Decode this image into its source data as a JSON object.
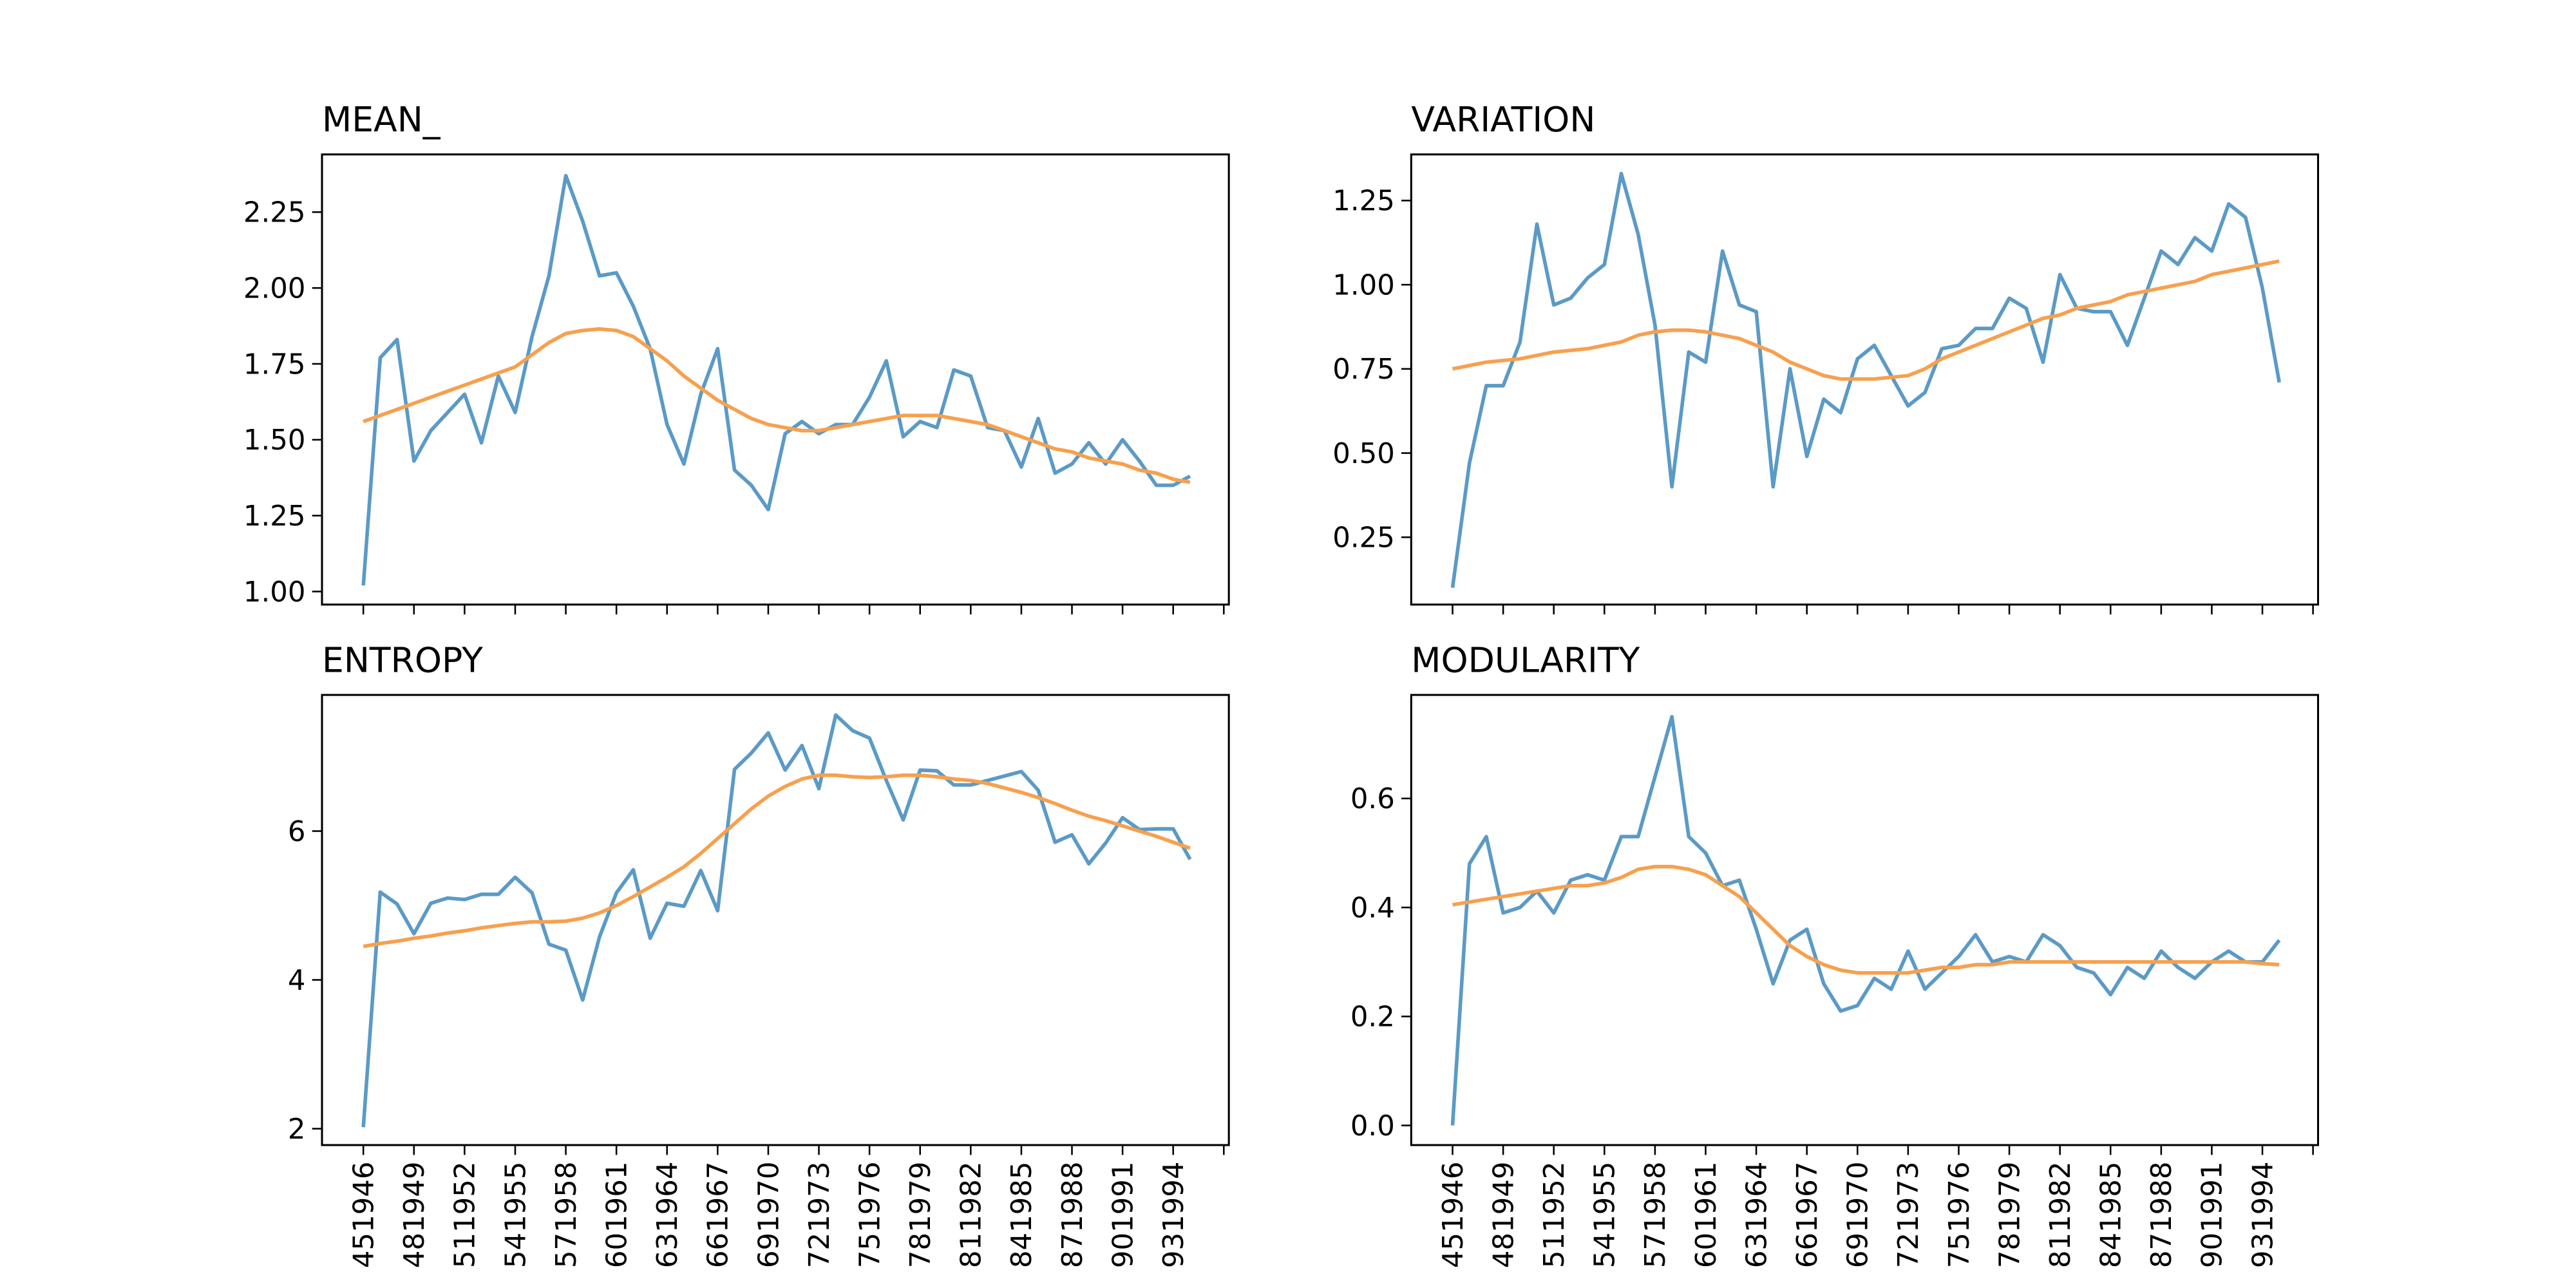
{
  "chart_data": [
    {
      "type": "line",
      "title": "MEAN_",
      "xlim": [
        -2.45,
        51.3
      ],
      "xticks": [
        0,
        3,
        6,
        9,
        12,
        15,
        18,
        21,
        24,
        27,
        30,
        33,
        36,
        39,
        42,
        45,
        48,
        51
      ],
      "ylim": [
        0.957,
        2.44
      ],
      "yticks": [
        {
          "value": 1.0,
          "label": "1.00"
        },
        {
          "value": 1.25,
          "label": "1.25"
        },
        {
          "value": 1.5,
          "label": "1.50"
        },
        {
          "value": 1.75,
          "label": "1.75"
        },
        {
          "value": 2.0,
          "label": "2.00"
        },
        {
          "value": 2.25,
          "label": "2.25"
        }
      ],
      "series": [
        {
          "color": "#5b9ac6",
          "values": [
            1.02,
            1.77,
            1.83,
            1.43,
            1.53,
            1.59,
            1.65,
            1.49,
            1.71,
            1.59,
            1.84,
            2.04,
            2.37,
            2.22,
            2.04,
            2.05,
            1.94,
            1.8,
            1.55,
            1.42,
            1.65,
            1.8,
            1.4,
            1.35,
            1.27,
            1.52,
            1.56,
            1.52,
            1.55,
            1.55,
            1.64,
            1.76,
            1.51,
            1.56,
            1.54,
            1.73,
            1.71,
            1.54,
            1.53,
            1.41,
            1.57,
            1.39,
            1.42,
            1.49,
            1.42,
            1.5,
            1.43,
            1.35,
            1.35,
            1.38
          ]
        },
        {
          "color": "#f7a04e",
          "values": [
            1.56,
            1.58,
            1.6,
            1.62,
            1.64,
            1.66,
            1.68,
            1.7,
            1.72,
            1.74,
            1.78,
            1.82,
            1.85,
            1.86,
            1.865,
            1.86,
            1.84,
            1.8,
            1.76,
            1.71,
            1.67,
            1.63,
            1.6,
            1.57,
            1.55,
            1.54,
            1.53,
            1.53,
            1.54,
            1.55,
            1.56,
            1.57,
            1.58,
            1.58,
            1.58,
            1.57,
            1.56,
            1.55,
            1.53,
            1.51,
            1.49,
            1.47,
            1.46,
            1.44,
            1.43,
            1.42,
            1.4,
            1.39,
            1.37,
            1.36
          ]
        }
      ]
    },
    {
      "type": "line",
      "title": "VARIATION",
      "xlim": [
        -2.45,
        51.3
      ],
      "xticks": [
        0,
        3,
        6,
        9,
        12,
        15,
        18,
        21,
        24,
        27,
        30,
        33,
        36,
        39,
        42,
        45,
        48,
        51
      ],
      "ylim": [
        0.05,
        1.387
      ],
      "yticks": [
        {
          "value": 0.25,
          "label": "0.25"
        },
        {
          "value": 0.5,
          "label": "0.50"
        },
        {
          "value": 0.75,
          "label": "0.75"
        },
        {
          "value": 1.0,
          "label": "1.00"
        },
        {
          "value": 1.25,
          "label": "1.25"
        }
      ],
      "series": [
        {
          "color": "#5b9ac6",
          "values": [
            0.1,
            0.47,
            0.7,
            0.7,
            0.83,
            1.18,
            0.94,
            0.96,
            1.02,
            1.06,
            1.33,
            1.15,
            0.88,
            0.4,
            0.8,
            0.77,
            1.1,
            0.94,
            0.92,
            0.4,
            0.75,
            0.49,
            0.66,
            0.62,
            0.78,
            0.82,
            0.73,
            0.64,
            0.68,
            0.81,
            0.82,
            0.87,
            0.87,
            0.96,
            0.93,
            0.77,
            1.03,
            0.93,
            0.92,
            0.92,
            0.82,
            0.96,
            1.1,
            1.06,
            1.14,
            1.1,
            1.24,
            1.2,
            0.99,
            0.71
          ]
        },
        {
          "color": "#f7a04e",
          "values": [
            0.75,
            0.76,
            0.77,
            0.775,
            0.78,
            0.79,
            0.8,
            0.805,
            0.81,
            0.82,
            0.83,
            0.85,
            0.86,
            0.865,
            0.865,
            0.86,
            0.85,
            0.84,
            0.82,
            0.8,
            0.77,
            0.75,
            0.73,
            0.72,
            0.72,
            0.72,
            0.725,
            0.73,
            0.75,
            0.78,
            0.8,
            0.82,
            0.84,
            0.86,
            0.88,
            0.9,
            0.91,
            0.93,
            0.94,
            0.95,
            0.97,
            0.98,
            0.99,
            1.0,
            1.01,
            1.03,
            1.04,
            1.05,
            1.06,
            1.07
          ]
        }
      ]
    },
    {
      "type": "line",
      "title": "ENTROPY",
      "xlim": [
        -2.45,
        51.3
      ],
      "xticks": [
        0,
        3,
        6,
        9,
        12,
        15,
        18,
        21,
        24,
        27,
        30,
        33,
        36,
        39,
        42,
        45,
        48,
        51
      ],
      "categories": [
        "451946",
        null,
        null,
        "481949",
        null,
        null,
        "511952",
        null,
        null,
        "541955",
        null,
        null,
        "571958",
        null,
        null,
        "601961",
        null,
        null,
        "631964",
        null,
        null,
        "661967",
        null,
        null,
        "691970",
        null,
        null,
        "721973",
        null,
        null,
        "751976",
        null,
        null,
        "781979",
        null,
        null,
        "811982",
        null,
        null,
        "841985",
        null,
        null,
        "871988",
        null,
        null,
        "901991",
        null,
        null,
        "931994",
        null
      ],
      "ylim": [
        1.78,
        7.83
      ],
      "yticks": [
        2,
        4,
        6
      ],
      "series": [
        {
          "color": "#5b9ac6",
          "values": [
            2.02,
            5.18,
            5.02,
            4.62,
            5.03,
            5.1,
            5.08,
            5.15,
            5.15,
            5.38,
            5.17,
            4.48,
            4.4,
            3.73,
            4.58,
            5.17,
            5.48,
            4.56,
            5.03,
            4.99,
            5.47,
            4.93,
            6.83,
            7.05,
            7.32,
            6.82,
            7.15,
            6.57,
            7.56,
            7.35,
            7.25,
            6.68,
            6.15,
            6.82,
            6.81,
            6.62,
            6.62,
            6.68,
            6.74,
            6.8,
            6.55,
            5.85,
            5.95,
            5.56,
            5.84,
            6.18,
            6.02,
            6.03,
            6.03,
            5.62
          ]
        },
        {
          "color": "#f7a04e",
          "values": [
            4.45,
            4.49,
            4.52,
            4.56,
            4.59,
            4.63,
            4.66,
            4.7,
            4.73,
            4.76,
            4.78,
            4.78,
            4.79,
            4.83,
            4.9,
            5.0,
            5.12,
            5.25,
            5.38,
            5.52,
            5.7,
            5.9,
            6.1,
            6.3,
            6.47,
            6.6,
            6.7,
            6.75,
            6.75,
            6.73,
            6.72,
            6.73,
            6.75,
            6.75,
            6.73,
            6.7,
            6.68,
            6.64,
            6.58,
            6.52,
            6.45,
            6.37,
            6.28,
            6.2,
            6.14,
            6.07,
            6.0,
            5.93,
            5.85,
            5.77
          ]
        }
      ]
    },
    {
      "type": "line",
      "title": "MODULARITY",
      "xlim": [
        -2.45,
        51.3
      ],
      "xticks": [
        0,
        3,
        6,
        9,
        12,
        15,
        18,
        21,
        24,
        27,
        30,
        33,
        36,
        39,
        42,
        45,
        48,
        51
      ],
      "categories": [
        "451946",
        null,
        null,
        "481949",
        null,
        null,
        "511952",
        null,
        null,
        "541955",
        null,
        null,
        "571958",
        null,
        null,
        "601961",
        null,
        null,
        "631964",
        null,
        null,
        "661967",
        null,
        null,
        "691970",
        null,
        null,
        "721973",
        null,
        null,
        "751976",
        null,
        null,
        "781979",
        null,
        null,
        "811982",
        null,
        null,
        "841985",
        null,
        null,
        "871988",
        null,
        null,
        "901991",
        null,
        null,
        "931994",
        null
      ],
      "ylim": [
        -0.036,
        0.79
      ],
      "yticks": [
        {
          "value": 0.0,
          "label": "0.0"
        },
        {
          "value": 0.2,
          "label": "0.2"
        },
        {
          "value": 0.4,
          "label": "0.4"
        },
        {
          "value": 0.6,
          "label": "0.6"
        }
      ],
      "series": [
        {
          "color": "#5b9ac6",
          "values": [
            0.0,
            0.48,
            0.53,
            0.39,
            0.4,
            0.43,
            0.39,
            0.45,
            0.46,
            0.45,
            0.53,
            0.53,
            0.64,
            0.75,
            0.53,
            0.5,
            0.44,
            0.45,
            0.36,
            0.26,
            0.34,
            0.36,
            0.26,
            0.21,
            0.22,
            0.27,
            0.25,
            0.32,
            0.25,
            0.28,
            0.31,
            0.35,
            0.3,
            0.31,
            0.3,
            0.35,
            0.33,
            0.29,
            0.28,
            0.24,
            0.29,
            0.27,
            0.32,
            0.29,
            0.27,
            0.3,
            0.32,
            0.3,
            0.3,
            0.34
          ]
        },
        {
          "color": "#f7a04e",
          "values": [
            0.405,
            0.41,
            0.415,
            0.42,
            0.425,
            0.43,
            0.435,
            0.44,
            0.44,
            0.445,
            0.455,
            0.47,
            0.475,
            0.475,
            0.47,
            0.46,
            0.44,
            0.42,
            0.39,
            0.36,
            0.33,
            0.31,
            0.295,
            0.285,
            0.28,
            0.28,
            0.28,
            0.28,
            0.285,
            0.29,
            0.29,
            0.295,
            0.295,
            0.3,
            0.3,
            0.3,
            0.3,
            0.3,
            0.3,
            0.3,
            0.3,
            0.3,
            0.3,
            0.3,
            0.3,
            0.3,
            0.3,
            0.3,
            0.297,
            0.295
          ]
        }
      ]
    }
  ]
}
